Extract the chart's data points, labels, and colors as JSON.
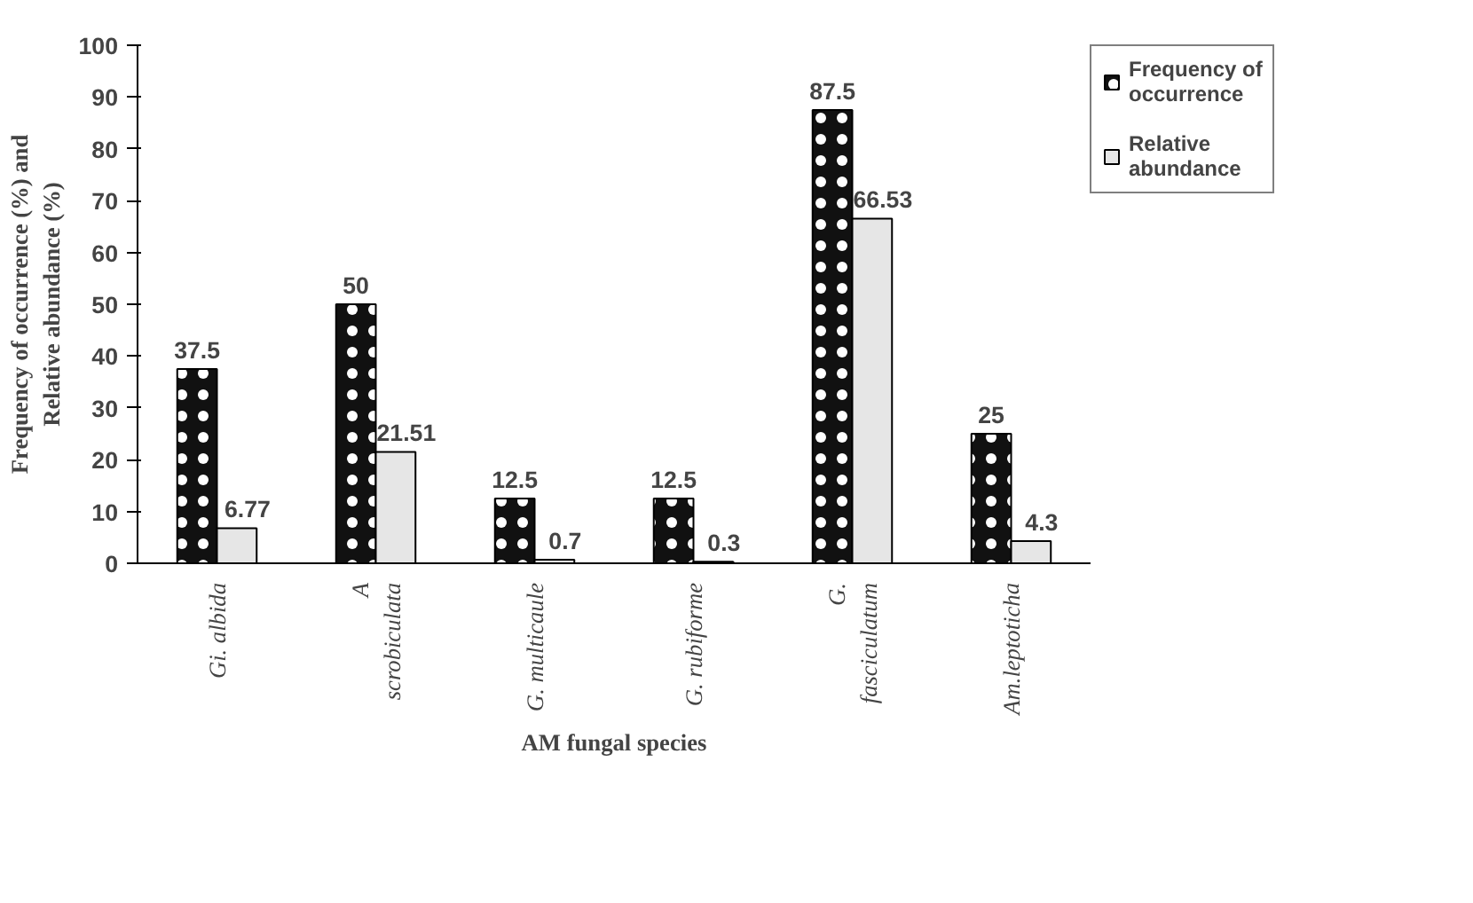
{
  "chart_data": {
    "type": "bar",
    "xlabel": "AM fungal species",
    "ylabel": "Frequency of occurrence (%) and\nRelative abundance (%)",
    "categories": [
      "Gi. albida",
      "A\nscrobiculata",
      "G. multicaule",
      "G. rubiforme",
      "G.\nfasciculatum",
      "Am.leptoticha"
    ],
    "series": [
      {
        "name": "Frequency of\noccurrence",
        "color": "#111111",
        "values": [
          37.5,
          50,
          12.5,
          12.5,
          87.5,
          25
        ]
      },
      {
        "name": "Relative\nabundance",
        "color": "#e6e6e6",
        "values": [
          6.77,
          21.51,
          0.7,
          0.3,
          66.53,
          4.3
        ]
      }
    ],
    "ylim": [
      0,
      100
    ],
    "yticks": [
      0,
      10,
      20,
      30,
      40,
      50,
      60,
      70,
      80,
      90,
      100
    ],
    "data_labels": true,
    "grid": false,
    "legend": "right"
  }
}
